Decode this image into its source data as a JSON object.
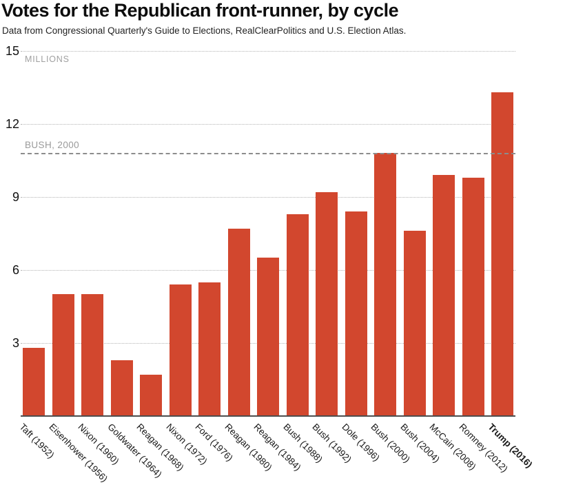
{
  "chart_data": {
    "type": "bar",
    "title": "Votes for the Republican front-runner, by cycle",
    "subtitle": "Data from Congressional Quarterly's Guide to Elections, RealClearPolitics and U.S. Election Atlas.",
    "unit_label": "MILLIONS",
    "xlabel": "",
    "ylabel": "",
    "ylim": [
      0,
      15
    ],
    "yticks": [
      3,
      6,
      9,
      12,
      15
    ],
    "grid": "horizontal dotted",
    "legend": "none",
    "bar_color": "#d2472e",
    "axis_color": "#4d4d4d",
    "gridline_color": "#b3b3b3",
    "muted_text_color": "#9e9e9e",
    "reference_line": {
      "label": "BUSH, 2000",
      "value": 10.8,
      "style": "dashed"
    },
    "categories": [
      "Taft (1952)",
      "Eisenhower (1956)",
      "Nixon (1960)",
      "Goldwater (1964)",
      "Reagan (1968)",
      "Nixon (1972)",
      "Ford (1976)",
      "Reagan (1980)",
      "Reagan (1984)",
      "Bush (1988)",
      "Bush (1992)",
      "Dole (1996)",
      "Bush (2000)",
      "Bush (2004)",
      "McCain (2008)",
      "Romney (2012)",
      "Trump (2016)"
    ],
    "values": [
      2.8,
      5.0,
      5.0,
      2.3,
      1.7,
      5.4,
      5.5,
      7.7,
      6.5,
      8.3,
      9.2,
      8.4,
      10.8,
      7.6,
      9.9,
      9.8,
      13.3
    ],
    "highlight_category": "Trump (2016)",
    "highlight_index": 16
  }
}
